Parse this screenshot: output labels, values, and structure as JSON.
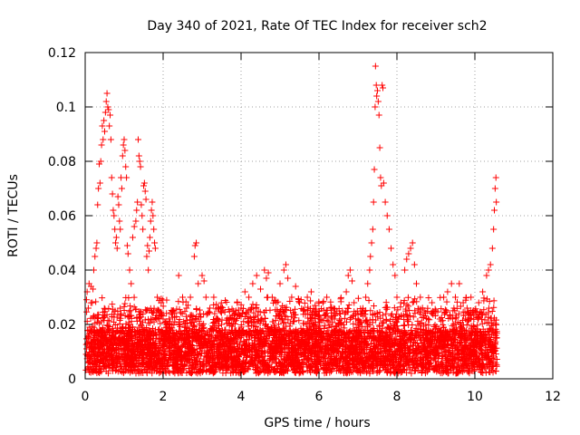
{
  "chart_data": {
    "type": "scatter",
    "title": "Day 340 of 2021, Rate Of TEC Index for receiver sch2",
    "xlabel": "GPS time / hours",
    "ylabel": "ROTI / TECUs",
    "xlim": [
      0,
      12
    ],
    "ylim": [
      0,
      0.12
    ],
    "xticks": [
      0,
      2,
      4,
      6,
      8,
      10,
      12
    ],
    "xtick_labels": [
      "0",
      "2",
      "4",
      "6",
      "8",
      "10",
      "12"
    ],
    "yticks": [
      0,
      0.02,
      0.04,
      0.06,
      0.08,
      0.1,
      0.12
    ],
    "ytick_labels": [
      "0",
      "0.02",
      "0.04",
      "0.06",
      "0.08",
      "0.1",
      "0.12"
    ],
    "grid": true,
    "marker": "+",
    "marker_color": "#ff0000",
    "series": [
      {
        "name": "ROTI",
        "points": [
          [
            0.05,
            0.032
          ],
          [
            0.08,
            0.026
          ],
          [
            0.1,
            0.035
          ],
          [
            0.12,
            0.018
          ],
          [
            0.15,
            0.034
          ],
          [
            0.18,
            0.028
          ],
          [
            0.2,
            0.033
          ],
          [
            0.22,
            0.04
          ],
          [
            0.25,
            0.045
          ],
          [
            0.28,
            0.048
          ],
          [
            0.3,
            0.05
          ],
          [
            0.32,
            0.064
          ],
          [
            0.34,
            0.07
          ],
          [
            0.36,
            0.079
          ],
          [
            0.38,
            0.072
          ],
          [
            0.4,
            0.08
          ],
          [
            0.42,
            0.086
          ],
          [
            0.44,
            0.093
          ],
          [
            0.46,
            0.088
          ],
          [
            0.48,
            0.095
          ],
          [
            0.5,
            0.091
          ],
          [
            0.52,
            0.098
          ],
          [
            0.54,
            0.102
          ],
          [
            0.56,
            0.105
          ],
          [
            0.58,
            0.1
          ],
          [
            0.6,
            0.099
          ],
          [
            0.62,
            0.093
          ],
          [
            0.64,
            0.097
          ],
          [
            0.66,
            0.088
          ],
          [
            0.68,
            0.074
          ],
          [
            0.7,
            0.068
          ],
          [
            0.72,
            0.062
          ],
          [
            0.74,
            0.06
          ],
          [
            0.76,
            0.055
          ],
          [
            0.78,
            0.05
          ],
          [
            0.8,
            0.052
          ],
          [
            0.82,
            0.048
          ],
          [
            0.84,
            0.067
          ],
          [
            0.86,
            0.064
          ],
          [
            0.88,
            0.058
          ],
          [
            0.9,
            0.055
          ],
          [
            0.92,
            0.074
          ],
          [
            0.94,
            0.07
          ],
          [
            0.96,
            0.082
          ],
          [
            0.98,
            0.086
          ],
          [
            1.0,
            0.088
          ],
          [
            1.02,
            0.084
          ],
          [
            1.04,
            0.078
          ],
          [
            1.06,
            0.074
          ],
          [
            1.08,
            0.049
          ],
          [
            1.1,
            0.046
          ],
          [
            1.14,
            0.04
          ],
          [
            1.18,
            0.035
          ],
          [
            1.22,
            0.052
          ],
          [
            1.26,
            0.056
          ],
          [
            1.3,
            0.058
          ],
          [
            1.32,
            0.062
          ],
          [
            1.34,
            0.065
          ],
          [
            1.36,
            0.088
          ],
          [
            1.38,
            0.082
          ],
          [
            1.4,
            0.08
          ],
          [
            1.42,
            0.078
          ],
          [
            1.44,
            0.064
          ],
          [
            1.46,
            0.06
          ],
          [
            1.48,
            0.055
          ],
          [
            1.5,
            0.071
          ],
          [
            1.52,
            0.072
          ],
          [
            1.54,
            0.069
          ],
          [
            1.56,
            0.066
          ],
          [
            1.58,
            0.045
          ],
          [
            1.6,
            0.049
          ],
          [
            1.62,
            0.04
          ],
          [
            1.64,
            0.047
          ],
          [
            1.66,
            0.052
          ],
          [
            1.68,
            0.058
          ],
          [
            1.7,
            0.062
          ],
          [
            1.72,
            0.065
          ],
          [
            1.74,
            0.06
          ],
          [
            1.76,
            0.055
          ],
          [
            1.78,
            0.05
          ],
          [
            1.8,
            0.048
          ],
          [
            1.85,
            0.03
          ],
          [
            1.9,
            0.025
          ],
          [
            1.95,
            0.028
          ],
          [
            2.0,
            0.022
          ],
          [
            2.1,
            0.02
          ],
          [
            2.2,
            0.018
          ],
          [
            2.3,
            0.021
          ],
          [
            2.4,
            0.038
          ],
          [
            2.5,
            0.03
          ],
          [
            2.6,
            0.026
          ],
          [
            2.7,
            0.03
          ],
          [
            2.8,
            0.045
          ],
          [
            2.82,
            0.049
          ],
          [
            2.85,
            0.05
          ],
          [
            2.9,
            0.035
          ],
          [
            3.0,
            0.038
          ],
          [
            3.05,
            0.036
          ],
          [
            3.1,
            0.03
          ],
          [
            3.2,
            0.026
          ],
          [
            3.3,
            0.03
          ],
          [
            3.4,
            0.022
          ],
          [
            3.5,
            0.02
          ],
          [
            3.6,
            0.018
          ],
          [
            3.7,
            0.022
          ],
          [
            3.8,
            0.025
          ],
          [
            3.9,
            0.028
          ],
          [
            4.0,
            0.026
          ],
          [
            4.1,
            0.032
          ],
          [
            4.2,
            0.03
          ],
          [
            4.3,
            0.035
          ],
          [
            4.4,
            0.038
          ],
          [
            4.5,
            0.033
          ],
          [
            4.6,
            0.04
          ],
          [
            4.65,
            0.037
          ],
          [
            4.7,
            0.039
          ],
          [
            4.8,
            0.03
          ],
          [
            4.9,
            0.028
          ],
          [
            5.0,
            0.035
          ],
          [
            5.1,
            0.04
          ],
          [
            5.15,
            0.042
          ],
          [
            5.2,
            0.037
          ],
          [
            5.3,
            0.03
          ],
          [
            5.4,
            0.034
          ],
          [
            5.5,
            0.028
          ],
          [
            5.6,
            0.025
          ],
          [
            5.7,
            0.03
          ],
          [
            5.8,
            0.032
          ],
          [
            5.9,
            0.027
          ],
          [
            6.0,
            0.025
          ],
          [
            6.1,
            0.028
          ],
          [
            6.2,
            0.03
          ],
          [
            6.3,
            0.026
          ],
          [
            6.4,
            0.022
          ],
          [
            6.5,
            0.02
          ],
          [
            6.6,
            0.025
          ],
          [
            6.7,
            0.032
          ],
          [
            6.75,
            0.038
          ],
          [
            6.8,
            0.04
          ],
          [
            6.85,
            0.036
          ],
          [
            6.9,
            0.028
          ],
          [
            7.0,
            0.022
          ],
          [
            7.1,
            0.025
          ],
          [
            7.2,
            0.03
          ],
          [
            7.25,
            0.035
          ],
          [
            7.3,
            0.04
          ],
          [
            7.32,
            0.045
          ],
          [
            7.35,
            0.05
          ],
          [
            7.38,
            0.055
          ],
          [
            7.4,
            0.065
          ],
          [
            7.42,
            0.077
          ],
          [
            7.44,
            0.1
          ],
          [
            7.45,
            0.115
          ],
          [
            7.47,
            0.108
          ],
          [
            7.48,
            0.104
          ],
          [
            7.5,
            0.106
          ],
          [
            7.52,
            0.102
          ],
          [
            7.54,
            0.097
          ],
          [
            7.56,
            0.085
          ],
          [
            7.58,
            0.074
          ],
          [
            7.6,
            0.071
          ],
          [
            7.62,
            0.108
          ],
          [
            7.64,
            0.107
          ],
          [
            7.66,
            0.072
          ],
          [
            7.7,
            0.065
          ],
          [
            7.75,
            0.06
          ],
          [
            7.8,
            0.055
          ],
          [
            7.85,
            0.048
          ],
          [
            7.9,
            0.042
          ],
          [
            7.95,
            0.038
          ],
          [
            8.0,
            0.03
          ],
          [
            8.1,
            0.028
          ],
          [
            8.2,
            0.04
          ],
          [
            8.25,
            0.044
          ],
          [
            8.3,
            0.046
          ],
          [
            8.35,
            0.048
          ],
          [
            8.4,
            0.05
          ],
          [
            8.45,
            0.042
          ],
          [
            8.5,
            0.035
          ],
          [
            8.6,
            0.03
          ],
          [
            8.7,
            0.025
          ],
          [
            8.8,
            0.022
          ],
          [
            8.9,
            0.028
          ],
          [
            9.0,
            0.025
          ],
          [
            9.1,
            0.022
          ],
          [
            9.2,
            0.03
          ],
          [
            9.3,
            0.032
          ],
          [
            9.4,
            0.035
          ],
          [
            9.5,
            0.03
          ],
          [
            9.6,
            0.035
          ],
          [
            9.7,
            0.028
          ],
          [
            9.8,
            0.026
          ],
          [
            9.9,
            0.03
          ],
          [
            10.0,
            0.025
          ],
          [
            10.1,
            0.028
          ],
          [
            10.2,
            0.032
          ],
          [
            10.3,
            0.038
          ],
          [
            10.35,
            0.04
          ],
          [
            10.4,
            0.042
          ],
          [
            10.45,
            0.048
          ],
          [
            10.48,
            0.055
          ],
          [
            10.5,
            0.062
          ],
          [
            10.52,
            0.07
          ],
          [
            10.54,
            0.074
          ],
          [
            10.55,
            0.065
          ]
        ]
      }
    ]
  }
}
